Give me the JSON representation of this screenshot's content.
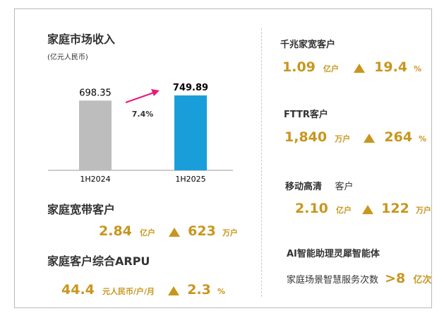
{
  "left": {
    "title": "家庭市场收入",
    "unit": "(亿元人民币)",
    "broadband": {
      "title": "家庭宽带客户",
      "value": "2.84",
      "value_unit": "亿户",
      "growth": "623",
      "growth_unit": "万户"
    },
    "arpu": {
      "title": "家庭客户综合ARPU",
      "value": "44.4",
      "value_unit": "元人民币/户/月",
      "growth": "2.3",
      "growth_unit": "%"
    }
  },
  "chart_data": {
    "type": "bar",
    "categories": [
      "1H2024",
      "1H2025"
    ],
    "values": [
      698.35,
      749.89
    ],
    "value_labels": [
      "698.35",
      "749.89"
    ],
    "bar_colors": [
      "#bdbdbd",
      "#1a9ed9"
    ],
    "growth_label": "7.4%",
    "arrow_color": "#e8197d"
  },
  "right": {
    "gigabit": {
      "title": "千兆家宽客户",
      "value": "1.09",
      "value_unit": "亿户",
      "growth": "19.4",
      "growth_unit": "%"
    },
    "fttr": {
      "title": "FTTR客户",
      "value": "1,840",
      "value_unit": "万户",
      "growth": "264",
      "growth_unit": "%"
    },
    "mobile_hd": {
      "title": "移动高清",
      "title_suffix": "客户",
      "value": "2.10",
      "value_unit": "亿户",
      "growth": "122",
      "growth_unit": "万户"
    },
    "ai": {
      "title": "AI智能助理灵犀智能体",
      "label": "家庭场景智慧服务次数",
      "value": ">8",
      "value_unit": "亿次"
    }
  },
  "colors": {
    "accent_gold": "#c8961e",
    "bar_2024": "#bdbdbd",
    "bar_2025": "#1a9ed9",
    "arrow": "#e8197d"
  }
}
